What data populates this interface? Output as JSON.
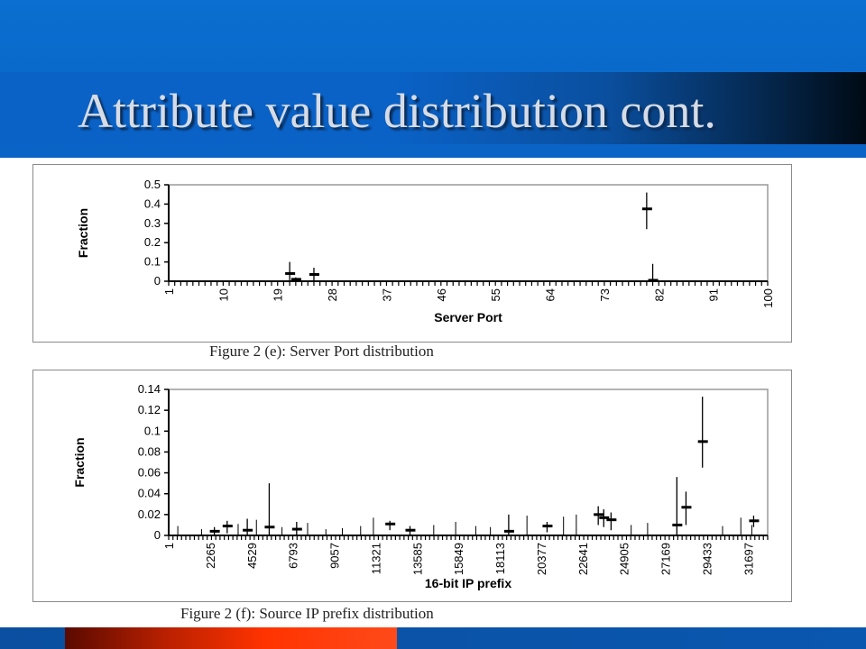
{
  "slide": {
    "title": "Attribute value distribution cont."
  },
  "theme": {
    "header_blue": "#0a6fd0",
    "footer_accent": "#ff3300"
  },
  "chart_data": [
    {
      "type": "scatter",
      "id": "e",
      "caption": "Figure 2 (e): Server Port distribution",
      "xlabel": "Server Port",
      "ylabel": "Fraction",
      "xlim": [
        1,
        100
      ],
      "ylim": [
        0,
        0.5
      ],
      "x_ticks": [
        "1",
        "10",
        "19",
        "28",
        "37",
        "46",
        "55",
        "64",
        "73",
        "82",
        "91",
        "100"
      ],
      "y_ticks": [
        "0",
        "0.1",
        "0.2",
        "0.3",
        "0.4",
        "0.5"
      ],
      "grid": false,
      "series": [
        {
          "points": [
            {
              "x": 21,
              "mean": 0.04,
              "low": 0.0,
              "high": 0.1
            },
            {
              "x": 22,
              "mean": 0.01,
              "low": 0.0,
              "high": 0.02
            },
            {
              "x": 25,
              "mean": 0.035,
              "low": 0.0,
              "high": 0.07
            },
            {
              "x": 80,
              "mean": 0.375,
              "low": 0.27,
              "high": 0.46
            },
            {
              "x": 81,
              "mean": 0.005,
              "low": 0.0,
              "high": 0.09
            }
          ]
        }
      ]
    },
    {
      "type": "scatter",
      "id": "f",
      "caption": "Figure 2 (f): Source IP prefix distribution",
      "xlabel": "16-bit IP prefix",
      "ylabel": "Fraction",
      "xlim": [
        1,
        32768
      ],
      "ylim": [
        0,
        0.14
      ],
      "x_ticks": [
        "1",
        "2265",
        "4529",
        "6793",
        "9057",
        "11321",
        "13585",
        "15849",
        "18113",
        "20377",
        "22641",
        "24905",
        "27169",
        "29433",
        "31697"
      ],
      "y_ticks": [
        "0",
        "0.02",
        "0.04",
        "0.06",
        "0.08",
        "0.1",
        "0.12",
        "0.14"
      ],
      "grid": false,
      "series": [
        {
          "points": [
            {
              "x": 2500,
              "mean": 0.004,
              "low": 0.0,
              "high": 0.008
            },
            {
              "x": 3200,
              "mean": 0.009,
              "low": 0.002,
              "high": 0.014
            },
            {
              "x": 4300,
              "mean": 0.005,
              "low": 0.0,
              "high": 0.016
            },
            {
              "x": 5500,
              "mean": 0.008,
              "low": 0.0,
              "high": 0.05
            },
            {
              "x": 7000,
              "mean": 0.006,
              "low": 0.0,
              "high": 0.013
            },
            {
              "x": 12100,
              "mean": 0.011,
              "low": 0.005,
              "high": 0.014
            },
            {
              "x": 13200,
              "mean": 0.005,
              "low": 0.0,
              "high": 0.009
            },
            {
              "x": 18600,
              "mean": 0.004,
              "low": 0.0,
              "high": 0.02
            },
            {
              "x": 20700,
              "mean": 0.009,
              "low": 0.003,
              "high": 0.013
            },
            {
              "x": 23500,
              "mean": 0.02,
              "low": 0.01,
              "high": 0.028
            },
            {
              "x": 23800,
              "mean": 0.017,
              "low": 0.008,
              "high": 0.025
            },
            {
              "x": 24200,
              "mean": 0.015,
              "low": 0.005,
              "high": 0.022
            },
            {
              "x": 27800,
              "mean": 0.01,
              "low": 0.0,
              "high": 0.056
            },
            {
              "x": 28300,
              "mean": 0.027,
              "low": 0.01,
              "high": 0.042
            },
            {
              "x": 29200,
              "mean": 0.09,
              "low": 0.065,
              "high": 0.133
            },
            {
              "x": 32000,
              "mean": 0.014,
              "low": 0.008,
              "high": 0.019
            }
          ],
          "baseline_spikes": [
            {
              "x": 500,
              "high": 0.009
            },
            {
              "x": 1800,
              "high": 0.006
            },
            {
              "x": 3800,
              "high": 0.011
            },
            {
              "x": 4800,
              "high": 0.015
            },
            {
              "x": 6200,
              "high": 0.008
            },
            {
              "x": 7600,
              "high": 0.012
            },
            {
              "x": 8600,
              "high": 0.006
            },
            {
              "x": 9500,
              "high": 0.007
            },
            {
              "x": 10500,
              "high": 0.009
            },
            {
              "x": 11200,
              "high": 0.017
            },
            {
              "x": 14500,
              "high": 0.01
            },
            {
              "x": 15700,
              "high": 0.013
            },
            {
              "x": 16800,
              "high": 0.009
            },
            {
              "x": 17600,
              "high": 0.008
            },
            {
              "x": 19600,
              "high": 0.019
            },
            {
              "x": 21600,
              "high": 0.018
            },
            {
              "x": 22300,
              "high": 0.02
            },
            {
              "x": 25300,
              "high": 0.01
            },
            {
              "x": 26200,
              "high": 0.012
            },
            {
              "x": 30300,
              "high": 0.009
            },
            {
              "x": 31300,
              "high": 0.017
            },
            {
              "x": 31900,
              "high": 0.01
            }
          ]
        }
      ]
    }
  ]
}
